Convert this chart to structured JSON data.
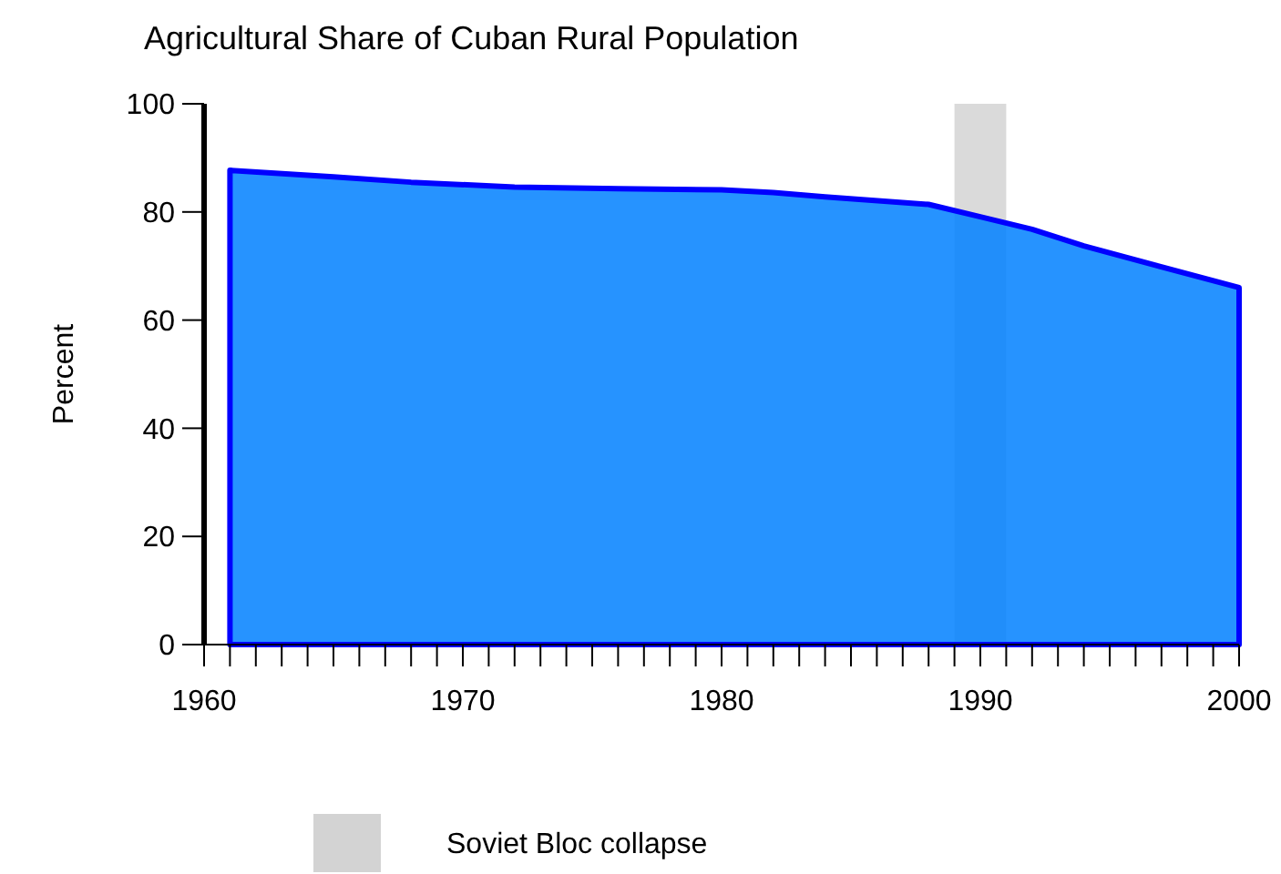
{
  "chart_data": {
    "type": "area",
    "title": "Agricultural Share of Cuban Rural Population",
    "ylabel": "Percent",
    "x": [
      1961,
      1965,
      1968,
      1972,
      1976,
      1980,
      1982,
      1984,
      1988,
      1990,
      1992,
      1994,
      2000
    ],
    "series": [
      {
        "color": "#0080ff",
        "values": [
          87.7,
          86.5,
          85.5,
          84.6,
          84.3,
          84.1,
          83.6,
          82.8,
          81.4,
          79.1,
          76.8,
          73.7,
          66
        ]
      }
    ],
    "xlim": [
      1960,
      2000
    ],
    "xticks": [
      1960,
      {
        "value": 1961,
        "label": null
      },
      {
        "value": 1962,
        "label": null
      },
      {
        "value": 1963,
        "label": null
      },
      {
        "value": 1964,
        "label": null
      },
      {
        "value": 1965,
        "label": null
      },
      {
        "value": 1966,
        "label": null
      },
      {
        "value": 1967,
        "label": null
      },
      {
        "value": 1968,
        "label": null
      },
      {
        "value": 1969,
        "label": null
      },
      1970,
      {
        "value": 1971,
        "label": null
      },
      {
        "value": 1972,
        "label": null
      },
      {
        "value": 1973,
        "label": null
      },
      {
        "value": 1974,
        "label": null
      },
      {
        "value": 1975,
        "label": null
      },
      {
        "value": 1976,
        "label": null
      },
      {
        "value": 1977,
        "label": null
      },
      {
        "value": 1978,
        "label": null
      },
      {
        "value": 1979,
        "label": null
      },
      1980,
      {
        "value": 1981,
        "label": null
      },
      {
        "value": 1982,
        "label": null
      },
      {
        "value": 1983,
        "label": null
      },
      {
        "value": 1984,
        "label": null
      },
      {
        "value": 1985,
        "label": null
      },
      {
        "value": 1986,
        "label": null
      },
      {
        "value": 1987,
        "label": null
      },
      {
        "value": 1988,
        "label": null
      },
      {
        "value": 1989,
        "label": null
      },
      1990,
      {
        "value": 1991,
        "label": null
      },
      {
        "value": 1992,
        "label": null
      },
      {
        "value": 1993,
        "label": null
      },
      {
        "value": 1994,
        "label": null
      },
      {
        "value": 1995,
        "label": null
      },
      {
        "value": 1996,
        "label": null
      },
      {
        "value": 1997,
        "label": null
      },
      {
        "value": 1998,
        "label": null
      },
      {
        "value": 1999,
        "label": null
      },
      2000
    ],
    "ylim": [
      0,
      100
    ],
    "yticks": [
      0,
      20,
      40,
      60,
      80,
      100
    ],
    "bands": [
      {
        "axis": "x",
        "from": 1989,
        "to": 1991,
        "label": "Soviet Bloc collapse",
        "color": "#d3d3d3"
      }
    ],
    "legend": "bottom",
    "grid": false
  }
}
